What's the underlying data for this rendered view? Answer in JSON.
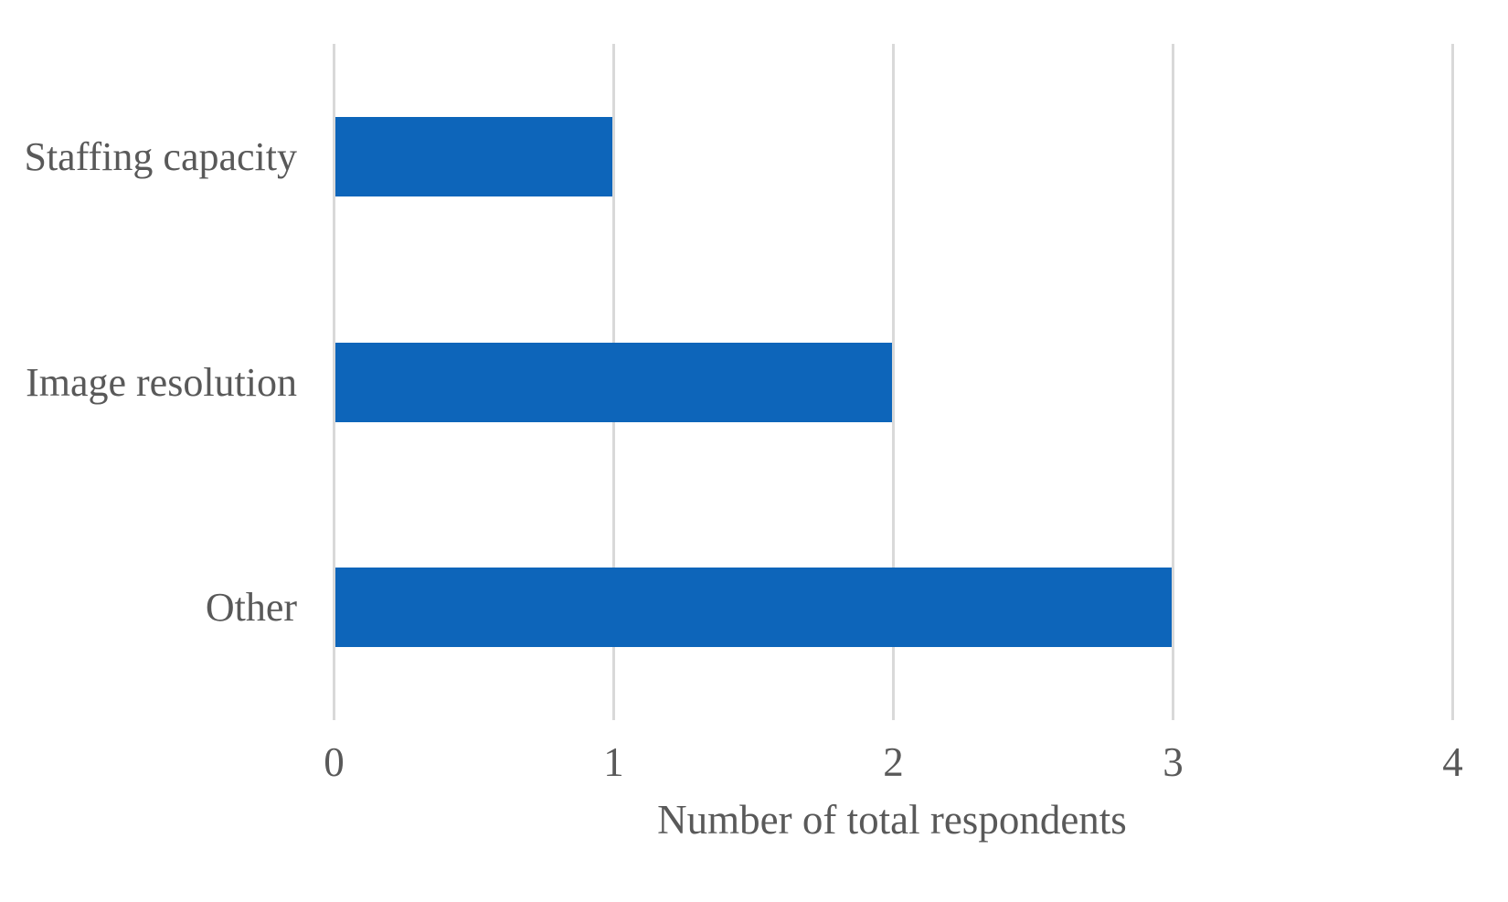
{
  "chart_data": {
    "type": "bar",
    "orientation": "horizontal",
    "title": "",
    "categories": [
      "Staffing capacity",
      "Image resolution",
      "Other"
    ],
    "values": [
      1,
      2,
      3
    ],
    "series": [
      {
        "name": "Number of total respondents",
        "values": [
          1,
          2,
          3
        ]
      }
    ],
    "xlabel": "Number of total respondents",
    "ylabel": "",
    "xlim": [
      0,
      4
    ],
    "xticks": [
      "0",
      "1",
      "2",
      "3",
      "4"
    ],
    "grid": true,
    "legend": false,
    "colors": {
      "bar": "#0D65BA",
      "gridline": "#D9D9D9",
      "text": "#595959",
      "background": "#FFFFFF"
    }
  }
}
